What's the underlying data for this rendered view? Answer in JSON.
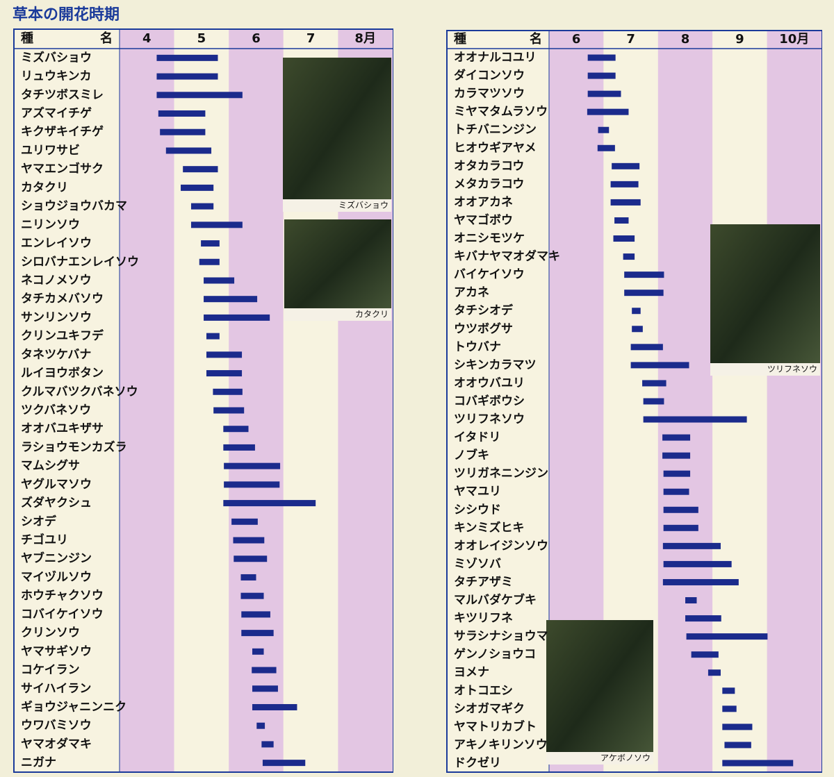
{
  "title": "草本の開花時期",
  "chart_data": [
    {
      "type": "gantt",
      "name_header": [
        "種",
        "名"
      ],
      "color": "#1b2b8c",
      "xlim": [
        4,
        9
      ],
      "xticks": [
        {
          "value": 4.5,
          "label": "4"
        },
        {
          "value": 5.5,
          "label": "5"
        },
        {
          "value": 6.5,
          "label": "6"
        },
        {
          "value": 7.5,
          "label": "7"
        },
        {
          "value": 8.5,
          "label": "8月"
        }
      ],
      "photo_captions": [
        "ミズバショウ",
        "カタクリ"
      ],
      "categories": [
        "ミズバショウ",
        "リュウキンカ",
        "タチツボスミレ",
        "アズマイチゲ",
        "キクザキイチゲ",
        "ユリワサビ",
        "ヤマエンゴサク",
        "カタクリ",
        "ショウジョウバカマ",
        "ニリンソウ",
        "エンレイソウ",
        "シロバナエンレイソウ",
        "ネコノメソウ",
        "タチカメバソウ",
        "サンリンソウ",
        "クリンユキフデ",
        "タネツケバナ",
        "ルイヨウボタン",
        "クルマバツクバネソウ",
        "ツクバネソウ",
        "オオバユキザサ",
        "ラショウモンカズラ",
        "マムシグサ",
        "ヤグルマソウ",
        "ズダヤクシュ",
        "シオデ",
        "チゴユリ",
        "ヤブニンジン",
        "マイヅルソウ",
        "ホウチャクソウ",
        "コバイケイソウ",
        "クリンソウ",
        "ヤマサギソウ",
        "コケイラン",
        "サイハイラン",
        "ギョウジャニンニク",
        "ウワバミソウ",
        "ヤマオダマキ",
        "ニガナ"
      ],
      "values": [
        [
          4.68,
          5.8
        ],
        [
          4.68,
          5.8
        ],
        [
          4.68,
          6.25
        ],
        [
          4.71,
          5.57
        ],
        [
          4.74,
          5.57
        ],
        [
          4.85,
          5.68
        ],
        [
          5.16,
          5.8
        ],
        [
          5.12,
          5.72
        ],
        [
          5.31,
          5.72
        ],
        [
          5.31,
          6.25
        ],
        [
          5.49,
          5.83
        ],
        [
          5.46,
          5.83
        ],
        [
          5.54,
          6.1
        ],
        [
          5.54,
          6.52
        ],
        [
          5.54,
          6.75
        ],
        [
          5.59,
          5.83
        ],
        [
          5.59,
          6.24
        ],
        [
          5.59,
          6.24
        ],
        [
          5.71,
          6.25
        ],
        [
          5.72,
          6.28
        ],
        [
          5.9,
          6.36
        ],
        [
          5.9,
          6.48
        ],
        [
          5.91,
          6.94
        ],
        [
          5.91,
          6.93
        ],
        [
          5.9,
          7.59
        ],
        [
          6.05,
          6.53
        ],
        [
          6.08,
          6.65
        ],
        [
          6.09,
          6.7
        ],
        [
          6.22,
          6.5
        ],
        [
          6.22,
          6.64
        ],
        [
          6.23,
          6.76
        ],
        [
          6.23,
          6.82
        ],
        [
          6.43,
          6.64
        ],
        [
          6.42,
          6.87
        ],
        [
          6.43,
          6.9
        ],
        [
          6.43,
          7.25
        ],
        [
          6.51,
          6.66
        ],
        [
          6.6,
          6.82
        ],
        [
          6.62,
          7.4
        ]
      ]
    },
    {
      "type": "gantt",
      "name_header": [
        "種",
        "名"
      ],
      "color": "#1b2b8c",
      "xlim": [
        6,
        11
      ],
      "xticks": [
        {
          "value": 6.5,
          "label": "6"
        },
        {
          "value": 7.5,
          "label": "7"
        },
        {
          "value": 8.5,
          "label": "8"
        },
        {
          "value": 9.5,
          "label": "9"
        },
        {
          "value": 10.5,
          "label": "10月"
        }
      ],
      "photo_captions": [
        "ツリフネソウ",
        "アケボノソウ"
      ],
      "categories": [
        "オオナルコユリ",
        "ダイコンソウ",
        "カラマツソウ",
        "ミヤマタムラソウ",
        "トチバニンジン",
        "ヒオウギアヤメ",
        "オタカラコウ",
        "メタカラコウ",
        "オオアカネ",
        "ヤマゴボウ",
        "オニシモツケ",
        "キバナヤマオダマキ",
        "バイケイソウ",
        "アカネ",
        "タチシオデ",
        "ウツボグサ",
        "トウバナ",
        "シキンカラマツ",
        "オオウバユリ",
        "コバギボウシ",
        "ツリフネソウ",
        "イタドリ",
        "ノブキ",
        "ツリガネニンジン",
        "ヤマユリ",
        "シシウド",
        "キンミズヒキ",
        "オオレイジンソウ",
        "ミゾソバ",
        "タチアザミ",
        "マルバダケブキ",
        "キツリフネ",
        "サラシナショウマ",
        "ゲンノショウコ",
        "ヨメナ",
        "オトコエシ",
        "シオガマギク",
        "ヤマトリカブト",
        "アキノキリンソウ",
        "ドクゼリ"
      ],
      "values": [
        [
          6.71,
          7.22
        ],
        [
          6.71,
          7.22
        ],
        [
          6.71,
          7.32
        ],
        [
          6.7,
          7.46
        ],
        [
          6.9,
          7.1
        ],
        [
          6.89,
          7.21
        ],
        [
          7.15,
          7.66
        ],
        [
          7.13,
          7.64
        ],
        [
          7.13,
          7.68
        ],
        [
          7.2,
          7.46
        ],
        [
          7.18,
          7.57
        ],
        [
          7.36,
          7.57
        ],
        [
          7.38,
          8.11
        ],
        [
          7.38,
          8.1
        ],
        [
          7.52,
          7.68
        ],
        [
          7.52,
          7.72
        ],
        [
          7.5,
          8.09
        ],
        [
          7.5,
          8.57
        ],
        [
          7.71,
          8.15
        ],
        [
          7.73,
          8.11
        ],
        [
          7.73,
          9.63
        ],
        [
          8.08,
          8.59
        ],
        [
          8.08,
          8.59
        ],
        [
          8.1,
          8.59
        ],
        [
          8.1,
          8.57
        ],
        [
          8.1,
          8.74
        ],
        [
          8.1,
          8.74
        ],
        [
          8.09,
          9.15
        ],
        [
          8.1,
          9.35
        ],
        [
          8.09,
          9.48
        ],
        [
          8.5,
          8.71
        ],
        [
          8.5,
          9.16
        ],
        [
          8.52,
          10.01
        ],
        [
          8.61,
          9.11
        ],
        [
          8.92,
          9.15
        ],
        [
          9.18,
          9.41
        ],
        [
          9.18,
          9.44
        ],
        [
          9.18,
          9.73
        ],
        [
          9.22,
          9.71
        ],
        [
          9.18,
          10.48
        ]
      ]
    }
  ]
}
